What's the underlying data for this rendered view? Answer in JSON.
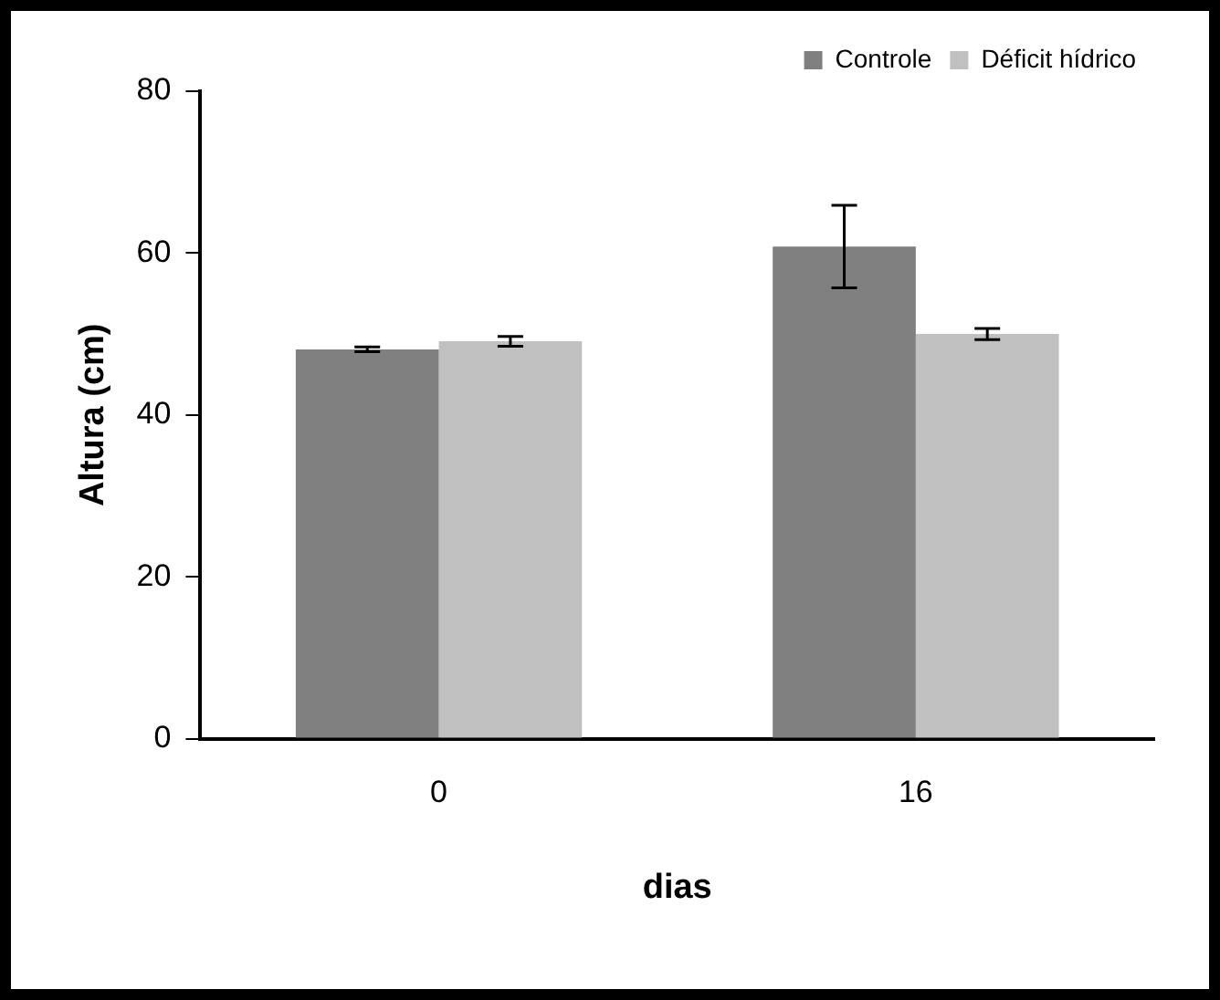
{
  "chart_data": {
    "type": "bar",
    "xlabel": "dias",
    "ylabel": "Altura (cm)",
    "categories": [
      "0",
      "16"
    ],
    "series": [
      {
        "name": "Controle",
        "color": "#808080",
        "values": [
          48.1,
          60.8
        ],
        "errors": [
          0.3,
          5.1
        ]
      },
      {
        "name": "Déficit hídrico",
        "color": "#c0c0c0",
        "values": [
          49.1,
          50.0
        ],
        "errors": [
          0.6,
          0.7
        ]
      }
    ],
    "ylim": [
      0,
      80
    ],
    "yticks": [
      0,
      20,
      40,
      60,
      80
    ],
    "grid": false,
    "legend": "top right"
  }
}
